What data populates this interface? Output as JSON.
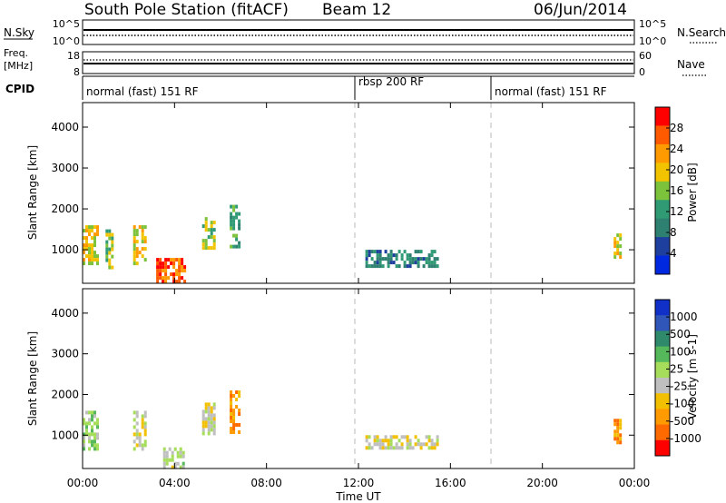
{
  "header": {
    "title": "South Pole Station (fitACF)",
    "beam": "Beam 12",
    "date": "06/Jun/2014"
  },
  "param_panels": {
    "nsky_label": "N.Sky",
    "nsky_ticks": [
      "10^5",
      "10^0"
    ],
    "nsearch_label": "N.Search",
    "nsearch_ticks": [
      "10^5",
      "10^0"
    ],
    "freq_label_1": "Freq.",
    "freq_label_2": "[MHz]",
    "freq_ticks": [
      "18",
      "8"
    ],
    "nave_label": "Nave",
    "nave_ticks": [
      "60",
      "0"
    ],
    "cpid_label": "CPID",
    "cpid_segments": [
      {
        "label": "normal (fast) 151 RF",
        "start_hour": 0,
        "end_hour": 12
      },
      {
        "label": "rbsp 200 RF",
        "start_hour": 12,
        "end_hour": 18
      },
      {
        "label": "normal (fast) 151 RF",
        "start_hour": 18,
        "end_hour": 24
      }
    ]
  },
  "x_axis": {
    "label": "Time UT",
    "ticks": [
      "00:00",
      "04:00",
      "08:00",
      "12:00",
      "16:00",
      "20:00",
      "00:00"
    ],
    "tick_hours": [
      0,
      4,
      8,
      12,
      16,
      20,
      24
    ]
  },
  "colorbars": {
    "power": {
      "label": "Power [dB]",
      "ticks": [
        "28",
        "24",
        "20",
        "16",
        "12",
        "8",
        "4"
      ],
      "colors": [
        "#ff0000",
        "#ff5a00",
        "#ff9a00",
        "#f2c400",
        "#7cc23a",
        "#2f9a74",
        "#2e8070",
        "#1f3f9f",
        "#0028e0"
      ]
    },
    "velocity": {
      "label": "Velocity [m s-1]",
      "ticks": [
        "1000",
        "500",
        "100",
        "25",
        "-25",
        "-100",
        "-500",
        "-1000"
      ],
      "colors": [
        "#1030c8",
        "#2f56b8",
        "#2e8a6a",
        "#55b85a",
        "#a6dd5a",
        "#bfbfbf",
        "#f2c000",
        "#ff9a00",
        "#ff6a00",
        "#ff0000"
      ]
    }
  },
  "chart_data": [
    {
      "type": "heatmap",
      "title": "",
      "xlabel": "Time UT",
      "ylabel": "Slant Range [km]",
      "xlim_hours": [
        0,
        24
      ],
      "ylim": [
        180,
        4600
      ],
      "yticks": [
        1000,
        2000,
        3000,
        4000
      ],
      "colorbar": "Power [dB]",
      "approx_patches": [
        {
          "t": [
            0.0,
            0.7
          ],
          "range": [
            600,
            1600
          ],
          "dB": 20
        },
        {
          "t": [
            1.0,
            1.3
          ],
          "range": [
            500,
            1500
          ],
          "dB": 16
        },
        {
          "t": [
            2.2,
            2.8
          ],
          "range": [
            600,
            1600
          ],
          "dB": 20
        },
        {
          "t": [
            3.2,
            4.5
          ],
          "range": [
            200,
            800
          ],
          "dB": 28
        },
        {
          "t": [
            5.2,
            5.8
          ],
          "range": [
            1000,
            1800
          ],
          "dB": 16
        },
        {
          "t": [
            6.4,
            6.9
          ],
          "range": [
            1000,
            2100
          ],
          "dB": 12
        },
        {
          "t": [
            12.3,
            15.5
          ],
          "range": [
            600,
            1000
          ],
          "dB": 8
        },
        {
          "t": [
            23.1,
            23.5
          ],
          "range": [
            800,
            1400
          ],
          "dB": 20
        }
      ]
    },
    {
      "type": "heatmap",
      "title": "",
      "xlabel": "Time UT",
      "ylabel": "Slant Range [km]",
      "xlim_hours": [
        0,
        24
      ],
      "ylim": [
        180,
        4600
      ],
      "yticks": [
        1000,
        2000,
        3000,
        4000
      ],
      "colorbar": "Velocity [m s-1]",
      "approx_patches": [
        {
          "t": [
            0.0,
            0.7
          ],
          "range": [
            600,
            1600
          ],
          "vel": 100
        },
        {
          "t": [
            2.2,
            2.8
          ],
          "range": [
            600,
            1600
          ],
          "vel": -100
        },
        {
          "t": [
            3.5,
            4.5
          ],
          "range": [
            200,
            700
          ],
          "vel": 0
        },
        {
          "t": [
            5.2,
            5.8
          ],
          "range": [
            1000,
            1800
          ],
          "vel": -100
        },
        {
          "t": [
            6.4,
            6.9
          ],
          "range": [
            1000,
            2100
          ],
          "vel": -500
        },
        {
          "t": [
            12.3,
            15.5
          ],
          "range": [
            600,
            1000
          ],
          "vel": -100
        },
        {
          "t": [
            23.1,
            23.5
          ],
          "range": [
            800,
            1400
          ],
          "vel": -500
        }
      ]
    }
  ]
}
